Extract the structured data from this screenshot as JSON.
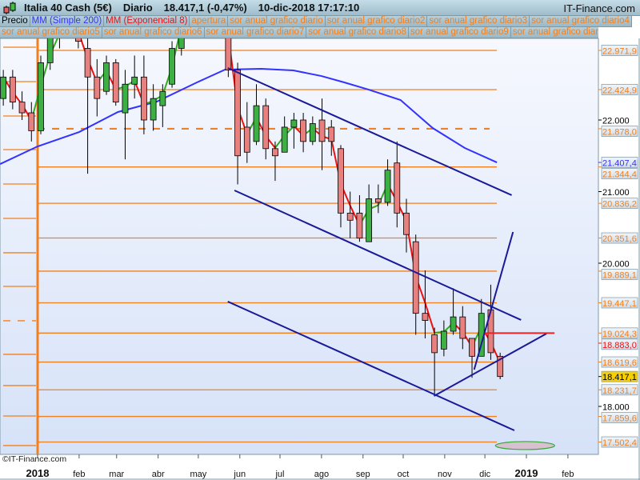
{
  "header": {
    "instrument": "Italia 40 Cash (5€)",
    "period": "Diario",
    "price": "18.417,1 (-0,47%)",
    "datetime": "10-dic-2018 17:17:10",
    "site": "IT-Finance.com"
  },
  "legend": {
    "row1": [
      {
        "label": "Precio",
        "color": "#000000"
      },
      {
        "label": "MM (Simple 200)",
        "color": "#3333ff"
      },
      {
        "label": "MM (Exponencial 8)",
        "color": "#ee1111"
      },
      {
        "label": "apertura",
        "color": "#f08020"
      },
      {
        "label": "sor anual grafico diario",
        "color": "#f08020"
      },
      {
        "label": "sor anual grafico diario2",
        "color": "#f08020"
      },
      {
        "label": "sor anual grafico diario3",
        "color": "#f08020"
      },
      {
        "label": "sor anual grafico diario4",
        "color": "#f08020"
      }
    ],
    "row2": [
      {
        "label": "sor anual grafico diario5",
        "color": "#f08020"
      },
      {
        "label": "sor anual grafico diario6",
        "color": "#f08020"
      },
      {
        "label": "sor anual grafico diario7",
        "color": "#f08020"
      },
      {
        "label": "sor anual grafico diario8",
        "color": "#f08020"
      },
      {
        "label": "sor anual grafico diario9",
        "color": "#f08020"
      },
      {
        "label": "sor anual grafico diario10",
        "color": "#f08020"
      },
      {
        "label": "s",
        "color": "#f08020"
      }
    ]
  },
  "copyright": "©IT-Finance.com",
  "chart_data": {
    "type": "candlestick",
    "ylim": [
      17200,
      23170
    ],
    "xlim": [
      "2017-12-04",
      "2019-02-23"
    ],
    "colors": {
      "up": "#3cb043",
      "down": "#e88080",
      "sma200": "#3333ff",
      "ema8_up": "#33aa22",
      "ema8_down": "#ee1111",
      "levels": "#f08020",
      "trendlines": "#1a1a99",
      "last": "#f8d000"
    },
    "x_ticks": [
      {
        "date": "2018-01-01",
        "label": "2018",
        "bold": true
      },
      {
        "date": "2018-02-01",
        "label": "feb"
      },
      {
        "date": "2018-03-01",
        "label": "mar"
      },
      {
        "date": "2018-04-01",
        "label": "abr"
      },
      {
        "date": "2018-05-01",
        "label": "may"
      },
      {
        "date": "2018-06-01",
        "label": "jun"
      },
      {
        "date": "2018-07-01",
        "label": "jul"
      },
      {
        "date": "2018-08-01",
        "label": "ago"
      },
      {
        "date": "2018-09-01",
        "label": "sep"
      },
      {
        "date": "2018-10-01",
        "label": "oct"
      },
      {
        "date": "2018-11-01",
        "label": "nov"
      },
      {
        "date": "2018-12-01",
        "label": "dic"
      },
      {
        "date": "2019-01-01",
        "label": "2019",
        "bold": true
      },
      {
        "date": "2019-02-01",
        "label": "feb"
      }
    ],
    "y_ticks": [
      {
        "value": 22000,
        "label": "22.000"
      },
      {
        "value": 21000,
        "label": "21.000"
      },
      {
        "value": 20000,
        "label": "20.000"
      },
      {
        "value": 18000,
        "label": "18.000"
      }
    ],
    "price_labels": [
      {
        "value": 22971.9,
        "label": "22.971,9",
        "kind": "level"
      },
      {
        "value": 22424.9,
        "label": "22.424,9",
        "kind": "level"
      },
      {
        "value": 21878.0,
        "label": "21.878,0",
        "kind": "level"
      },
      {
        "value": 21407.4,
        "label": "21.407,4",
        "kind": "sma"
      },
      {
        "value": 21344.4,
        "label": "21.344,4",
        "kind": "level"
      },
      {
        "value": 20836.2,
        "label": "20.836,2",
        "kind": "level"
      },
      {
        "value": 20351.6,
        "label": "20.351,6",
        "kind": "level"
      },
      {
        "value": 19889.1,
        "label": "19.889,1",
        "kind": "level"
      },
      {
        "value": 19447.1,
        "label": "19.447,1",
        "kind": "level"
      },
      {
        "value": 19024.3,
        "label": "19.024,3",
        "kind": "level"
      },
      {
        "value": 18883.0,
        "label": "18.883,0",
        "kind": "ema"
      },
      {
        "value": 18619.6,
        "label": "18.619,6",
        "kind": "level"
      },
      {
        "value": 18417.1,
        "label": "18.417,1",
        "kind": "last"
      },
      {
        "value": 18231.7,
        "label": "18.231,7",
        "kind": "level"
      },
      {
        "value": 17859.6,
        "label": "17.859,6",
        "kind": "level"
      },
      {
        "value": 17502.4,
        "label": "17.502,4",
        "kind": "level"
      }
    ],
    "levels_2018": [
      22971.9,
      22424.9,
      21878.0,
      21344.4,
      20836.2,
      20351.6,
      19889.1,
      19447.1,
      19024.3,
      18619.6,
      18231.7,
      17859.6,
      17502.4
    ],
    "levels_2018_dashed": 21878.0,
    "levels_2017": [
      23017,
      22536,
      22056,
      21587,
      21106,
      20626,
      20146,
      19676,
      19196,
      18727,
      18291,
      17866,
      17453
    ],
    "levels_2017_dashed": 19196,
    "year_open_date": "2018-01-01",
    "candles_weekly": [
      [
        "2017-12-04",
        22300,
        22700,
        22200,
        22600
      ],
      [
        "2017-12-11",
        22600,
        22700,
        22150,
        22250
      ],
      [
        "2017-12-18",
        22250,
        22400,
        22000,
        22100
      ],
      [
        "2017-12-25",
        22100,
        22250,
        21700,
        21850
      ],
      [
        "2018-01-01",
        21850,
        22900,
        21800,
        22800
      ],
      [
        "2018-01-08",
        22800,
        23500,
        22700,
        23200
      ],
      [
        "2018-01-15",
        23200,
        23600,
        23000,
        23400
      ],
      [
        "2018-01-22",
        23400,
        23800,
        23300,
        23600
      ],
      [
        "2018-01-29",
        23600,
        23800,
        23000,
        23100
      ],
      [
        "2018-02-05",
        23000,
        23200,
        21250,
        22600
      ],
      [
        "2018-02-12",
        22600,
        22850,
        22050,
        22300
      ],
      [
        "2018-02-19",
        22400,
        22900,
        22350,
        22800
      ],
      [
        "2018-02-26",
        22800,
        22850,
        22200,
        22250
      ],
      [
        "2018-03-05",
        22100,
        22700,
        21450,
        22500
      ],
      [
        "2018-03-12",
        22500,
        22900,
        22300,
        22600
      ],
      [
        "2018-03-19",
        22600,
        22900,
        21800,
        22000
      ],
      [
        "2018-03-26",
        22000,
        22500,
        21850,
        22300
      ],
      [
        "2018-04-02",
        22200,
        22500,
        21900,
        22400
      ],
      [
        "2018-04-09",
        22500,
        23100,
        22450,
        23000
      ],
      [
        "2018-04-16",
        23000,
        23800,
        22900,
        23700
      ],
      [
        "2018-04-23",
        23700,
        24000,
        23500,
        23900
      ],
      [
        "2018-04-30",
        23900,
        24200,
        23700,
        24000
      ],
      [
        "2018-05-07",
        24000,
        24400,
        23800,
        24200
      ],
      [
        "2018-05-14",
        24200,
        24300,
        23600,
        23800
      ],
      [
        "2018-05-21",
        23500,
        23700,
        22600,
        22700
      ],
      [
        "2018-05-28",
        22700,
        22800,
        21100,
        21500
      ],
      [
        "2018-06-04",
        21900,
        22250,
        21400,
        21550
      ],
      [
        "2018-06-11",
        21700,
        22500,
        21650,
        22200
      ],
      [
        "2018-06-18",
        22200,
        22300,
        21450,
        21600
      ],
      [
        "2018-06-25",
        21600,
        21700,
        21150,
        21500
      ],
      [
        "2018-07-02",
        21550,
        22050,
        21550,
        21900
      ],
      [
        "2018-07-09",
        21900,
        22100,
        21600,
        22000
      ],
      [
        "2018-07-16",
        22000,
        22100,
        21550,
        21700
      ],
      [
        "2018-07-23",
        21700,
        22050,
        21650,
        21950
      ],
      [
        "2018-07-30",
        22000,
        22300,
        21300,
        21700
      ],
      [
        "2018-08-06",
        21900,
        22000,
        21500,
        21700
      ],
      [
        "2018-08-13",
        21600,
        21650,
        20500,
        20700
      ],
      [
        "2018-08-20",
        20700,
        21000,
        20350,
        20600
      ],
      [
        "2018-08-27",
        20700,
        20950,
        20300,
        20350
      ],
      [
        "2018-09-03",
        20300,
        21100,
        20300,
        20900
      ],
      [
        "2018-09-10",
        20900,
        21100,
        20700,
        20850
      ],
      [
        "2018-09-17",
        20850,
        21450,
        20800,
        21300
      ],
      [
        "2018-09-24",
        21400,
        21700,
        20500,
        20700
      ],
      [
        "2018-10-01",
        20700,
        20900,
        20150,
        20400
      ],
      [
        "2018-10-08",
        20300,
        20400,
        19000,
        19300
      ],
      [
        "2018-10-15",
        19300,
        19900,
        18950,
        19200
      ],
      [
        "2018-10-22",
        19000,
        19100,
        18150,
        18750
      ],
      [
        "2018-10-29",
        18800,
        19200,
        18700,
        19050
      ],
      [
        "2018-11-05",
        19050,
        19650,
        19000,
        19250
      ],
      [
        "2018-11-12",
        19250,
        19400,
        18800,
        18950
      ],
      [
        "2018-11-19",
        18950,
        18950,
        18400,
        18700
      ],
      [
        "2018-11-26",
        18700,
        19500,
        18700,
        19300
      ],
      [
        "2018-12-03",
        19350,
        19700,
        18650,
        18750
      ],
      [
        "2018-12-10",
        18700,
        18750,
        18380,
        18417.1
      ]
    ],
    "sma200": [
      [
        "2017-12-04",
        21385
      ],
      [
        "2018-01-01",
        21631
      ],
      [
        "2018-02-01",
        21832
      ],
      [
        "2018-03-02",
        22112
      ],
      [
        "2018-03-31",
        22257
      ],
      [
        "2018-04-30",
        22525
      ],
      [
        "2018-05-21",
        22704
      ],
      [
        "2018-06-17",
        22715
      ],
      [
        "2018-07-11",
        22693
      ],
      [
        "2018-08-01",
        22614
      ],
      [
        "2018-08-18",
        22525
      ],
      [
        "2018-09-05",
        22425
      ],
      [
        "2018-09-29",
        22279
      ],
      [
        "2018-10-23",
        21888
      ],
      [
        "2018-11-16",
        21609
      ],
      [
        "2018-12-10",
        21407.4
      ]
    ],
    "trendlines": [
      {
        "from": [
          "2018-05-23",
          22726
        ],
        "to": [
          "2018-12-21",
          20950
        ]
      },
      {
        "from": [
          "2018-05-28",
          21017
        ],
        "to": [
          "2018-12-28",
          19207
        ]
      },
      {
        "from": [
          "2018-05-23",
          19464
        ],
        "to": [
          "2018-12-23",
          17665
        ]
      },
      {
        "from": [
          "2018-10-24",
          18145
        ],
        "to": [
          "2019-01-16",
          19017
        ]
      },
      {
        "from": [
          "2018-11-23",
          18514
        ],
        "to": [
          "2018-12-22",
          20436
        ]
      }
    ],
    "horizontal_line": {
      "from": "2018-12-01",
      "to": "2019-01-22",
      "value": 19024,
      "color": "#ee2222"
    },
    "ellipse": {
      "date": "2018-12-31",
      "value": 17453,
      "fill": "#d8c0d0",
      "stroke": "#33aa33"
    }
  }
}
